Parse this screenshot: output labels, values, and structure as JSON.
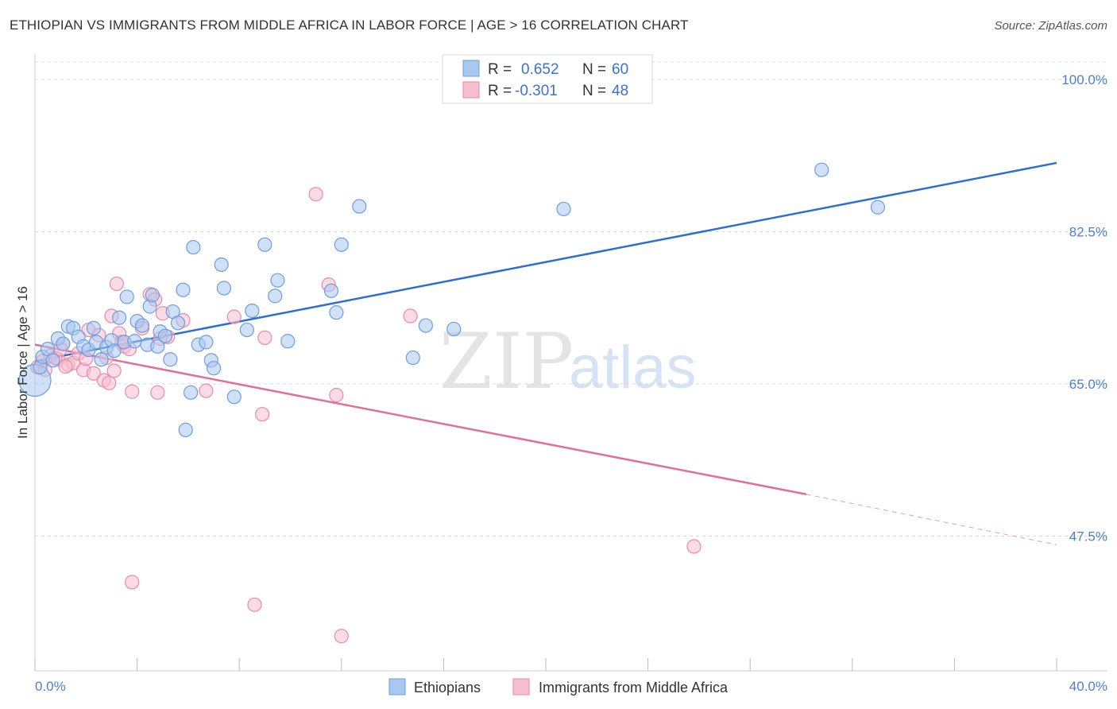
{
  "title": "ETHIOPIAN VS IMMIGRANTS FROM MIDDLE AFRICA IN LABOR FORCE | AGE > 16 CORRELATION CHART",
  "source": "Source: ZipAtlas.com",
  "watermark": {
    "zip": "ZIP",
    "atlas": "atlas"
  },
  "legend": {
    "rows": [
      {
        "r_label": "R =",
        "r_value": "0.652",
        "n_label": "N =",
        "n_value": "60"
      },
      {
        "r_label": "R =",
        "r_value": "-0.301",
        "n_label": "N =",
        "n_value": "48"
      }
    ]
  },
  "bottom_legend": [
    {
      "label": "Ethiopians"
    },
    {
      "label": "Immigrants from Middle Africa"
    }
  ],
  "colors": {
    "blue_fill": "#a9c8f0",
    "blue_stroke": "#6d9de0",
    "blue_line": "#2d6fd1",
    "pink_fill": "#f7bed0",
    "pink_stroke": "#e88aa8",
    "pink_line": "#e0709a",
    "grid": "#d9d9d9",
    "tick_text": "#4a7fd1"
  },
  "chart_data": {
    "type": "scatter",
    "title": "ETHIOPIAN VS IMMIGRANTS FROM MIDDLE AFRICA IN LABOR FORCE | AGE > 16 CORRELATION CHART",
    "xlabel": "",
    "ylabel": "In Labor Force | Age > 16",
    "xlim": [
      0,
      40
    ],
    "ylim": [
      32,
      102
    ],
    "x_tick_labels": [
      "0.0%",
      "40.0%"
    ],
    "y_ticks": [
      47.5,
      65.0,
      82.5,
      100.0
    ],
    "y_tick_labels": [
      "47.5%",
      "65.0%",
      "82.5%",
      "100.0%"
    ],
    "grid": true,
    "legend_position": "top-center",
    "series": [
      {
        "name": "Ethiopians",
        "color": "#a9c8f0",
        "trend": {
          "x": [
            0,
            40
          ],
          "y": [
            67.6,
            90.4
          ],
          "style": "solid"
        },
        "points": [
          {
            "x": 0.0,
            "y": 65.4,
            "big": true
          },
          {
            "x": 0.2,
            "y": 66.9
          },
          {
            "x": 0.3,
            "y": 68.1
          },
          {
            "x": 0.5,
            "y": 69.0
          },
          {
            "x": 0.7,
            "y": 67.7
          },
          {
            "x": 0.9,
            "y": 70.2
          },
          {
            "x": 1.1,
            "y": 69.6
          },
          {
            "x": 1.3,
            "y": 71.6
          },
          {
            "x": 1.5,
            "y": 71.4
          },
          {
            "x": 1.7,
            "y": 70.4
          },
          {
            "x": 1.9,
            "y": 69.3
          },
          {
            "x": 2.1,
            "y": 68.9
          },
          {
            "x": 2.3,
            "y": 71.4
          },
          {
            "x": 2.4,
            "y": 69.8
          },
          {
            "x": 2.6,
            "y": 67.8
          },
          {
            "x": 2.8,
            "y": 69.2
          },
          {
            "x": 3.0,
            "y": 70.0
          },
          {
            "x": 3.1,
            "y": 68.8
          },
          {
            "x": 3.3,
            "y": 72.6
          },
          {
            "x": 3.5,
            "y": 69.8
          },
          {
            "x": 3.6,
            "y": 75.0
          },
          {
            "x": 3.9,
            "y": 69.9
          },
          {
            "x": 4.0,
            "y": 72.2
          },
          {
            "x": 4.2,
            "y": 71.7
          },
          {
            "x": 4.4,
            "y": 69.5
          },
          {
            "x": 4.5,
            "y": 73.9
          },
          {
            "x": 4.6,
            "y": 75.2
          },
          {
            "x": 4.8,
            "y": 69.3
          },
          {
            "x": 4.9,
            "y": 71.0
          },
          {
            "x": 5.1,
            "y": 70.5
          },
          {
            "x": 5.3,
            "y": 67.8
          },
          {
            "x": 5.4,
            "y": 73.3
          },
          {
            "x": 5.6,
            "y": 72.0
          },
          {
            "x": 5.8,
            "y": 75.8
          },
          {
            "x": 5.9,
            "y": 59.7
          },
          {
            "x": 6.1,
            "y": 64.0
          },
          {
            "x": 6.2,
            "y": 80.7
          },
          {
            "x": 6.4,
            "y": 69.5
          },
          {
            "x": 6.7,
            "y": 69.8
          },
          {
            "x": 6.9,
            "y": 67.7
          },
          {
            "x": 7.0,
            "y": 66.8
          },
          {
            "x": 7.3,
            "y": 78.7
          },
          {
            "x": 7.4,
            "y": 76.0
          },
          {
            "x": 7.8,
            "y": 63.5
          },
          {
            "x": 8.3,
            "y": 71.2
          },
          {
            "x": 8.5,
            "y": 73.4
          },
          {
            "x": 9.0,
            "y": 81.0
          },
          {
            "x": 9.4,
            "y": 75.1
          },
          {
            "x": 9.5,
            "y": 76.9
          },
          {
            "x": 9.9,
            "y": 69.9
          },
          {
            "x": 11.6,
            "y": 75.7
          },
          {
            "x": 11.8,
            "y": 73.2
          },
          {
            "x": 12.7,
            "y": 85.4
          },
          {
            "x": 14.8,
            "y": 68.0
          },
          {
            "x": 15.3,
            "y": 71.7
          },
          {
            "x": 16.4,
            "y": 71.3
          },
          {
            "x": 20.7,
            "y": 85.1
          },
          {
            "x": 30.8,
            "y": 89.6
          },
          {
            "x": 33.0,
            "y": 85.3
          },
          {
            "x": 12.0,
            "y": 81.0
          }
        ]
      },
      {
        "name": "Immigrants from Middle Africa",
        "color": "#f7bed0",
        "trend": {
          "x": [
            0,
            30.2
          ],
          "y": [
            69.5,
            52.3
          ],
          "style": "solid",
          "extension": {
            "x": [
              30.2,
              40
            ],
            "y": [
              52.3,
              46.5
            ],
            "style": "dashed"
          }
        },
        "points": [
          {
            "x": 0.1,
            "y": 66.9
          },
          {
            "x": 0.3,
            "y": 67.6
          },
          {
            "x": 0.6,
            "y": 68.2
          },
          {
            "x": 0.9,
            "y": 67.8
          },
          {
            "x": 1.1,
            "y": 69.6
          },
          {
            "x": 1.3,
            "y": 67.2
          },
          {
            "x": 1.5,
            "y": 67.4
          },
          {
            "x": 1.7,
            "y": 68.5
          },
          {
            "x": 1.9,
            "y": 66.6
          },
          {
            "x": 2.1,
            "y": 71.2
          },
          {
            "x": 2.3,
            "y": 66.2
          },
          {
            "x": 2.5,
            "y": 70.6
          },
          {
            "x": 2.7,
            "y": 65.4
          },
          {
            "x": 2.8,
            "y": 68.0
          },
          {
            "x": 2.9,
            "y": 65.1
          },
          {
            "x": 3.0,
            "y": 72.8
          },
          {
            "x": 3.1,
            "y": 66.5
          },
          {
            "x": 3.2,
            "y": 76.5
          },
          {
            "x": 3.3,
            "y": 70.8
          },
          {
            "x": 3.5,
            "y": 69.3
          },
          {
            "x": 3.7,
            "y": 69.0
          },
          {
            "x": 3.8,
            "y": 64.1
          },
          {
            "x": 3.8,
            "y": 42.2
          },
          {
            "x": 4.2,
            "y": 71.4
          },
          {
            "x": 4.5,
            "y": 75.3
          },
          {
            "x": 4.7,
            "y": 74.7
          },
          {
            "x": 4.8,
            "y": 64.0
          },
          {
            "x": 5.0,
            "y": 73.1
          },
          {
            "x": 5.2,
            "y": 70.4
          },
          {
            "x": 5.8,
            "y": 72.3
          },
          {
            "x": 6.7,
            "y": 64.2
          },
          {
            "x": 7.8,
            "y": 72.7
          },
          {
            "x": 8.6,
            "y": 39.6
          },
          {
            "x": 8.9,
            "y": 61.5
          },
          {
            "x": 9.0,
            "y": 70.3
          },
          {
            "x": 11.0,
            "y": 86.8
          },
          {
            "x": 11.5,
            "y": 76.4
          },
          {
            "x": 11.8,
            "y": 63.7
          },
          {
            "x": 12.0,
            "y": 36.0
          },
          {
            "x": 14.7,
            "y": 72.8
          },
          {
            "x": 25.8,
            "y": 46.3
          },
          {
            "x": 0.4,
            "y": 66.6
          },
          {
            "x": 0.8,
            "y": 68.0
          },
          {
            "x": 1.0,
            "y": 69.0
          },
          {
            "x": 1.2,
            "y": 67.0
          },
          {
            "x": 2.0,
            "y": 67.9
          },
          {
            "x": 3.4,
            "y": 69.8
          },
          {
            "x": 4.9,
            "y": 70.2
          }
        ]
      }
    ]
  }
}
